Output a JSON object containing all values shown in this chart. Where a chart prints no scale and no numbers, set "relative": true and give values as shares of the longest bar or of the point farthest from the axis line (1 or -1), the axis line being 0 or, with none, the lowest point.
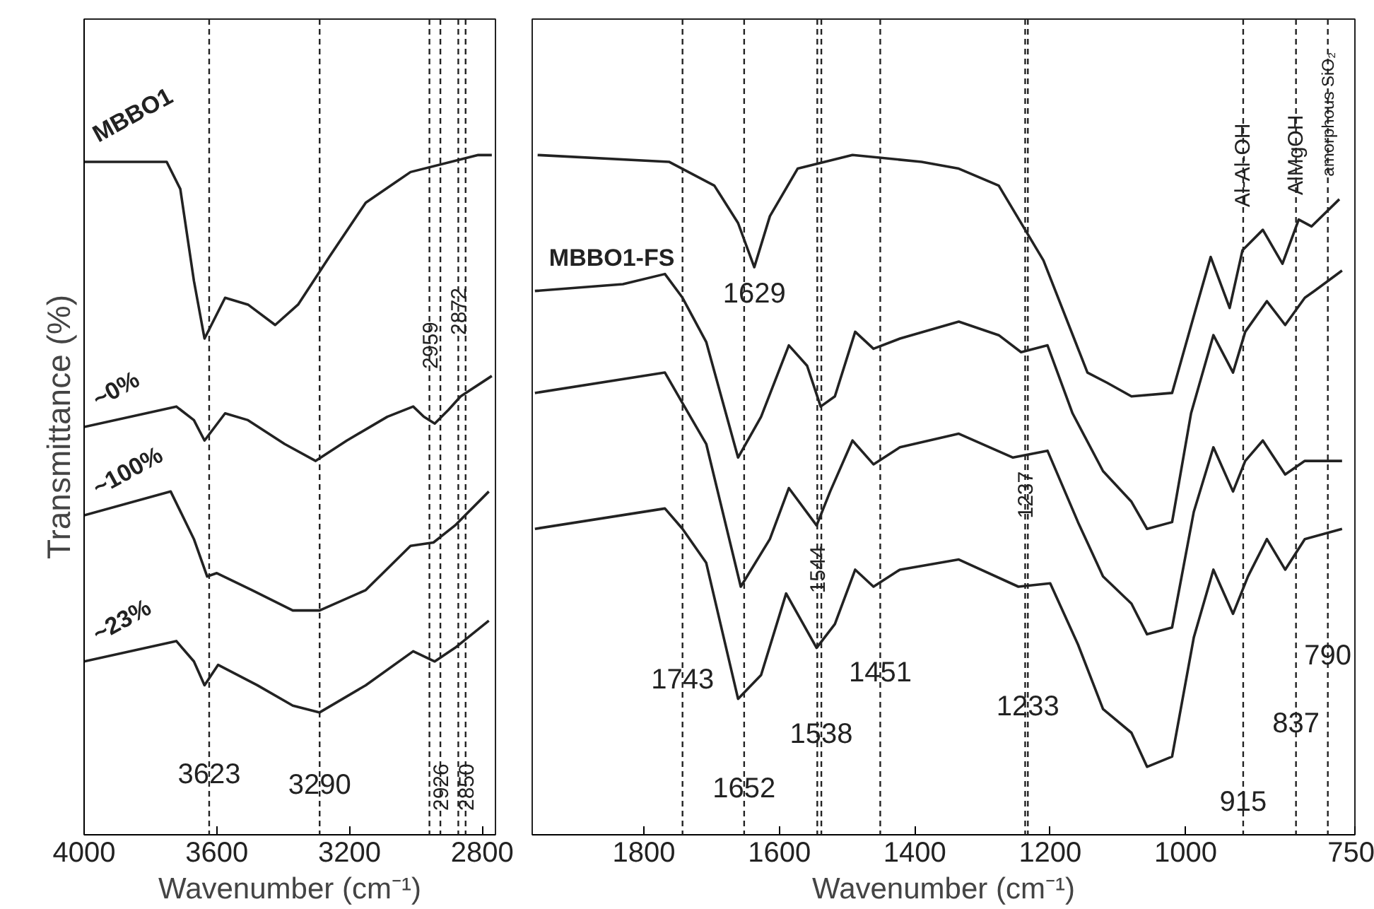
{
  "chart_data": [
    {
      "type": "line",
      "relative": true,
      "ylabel": "Transmittance (%)",
      "xlabel": "Wavenumber (cm⁻¹)",
      "xlim": [
        4000,
        2760
      ],
      "xticks": [
        4000,
        3600,
        3200,
        2800
      ],
      "tick_labels": "x",
      "legend": false,
      "grid": false,
      "marker": "none",
      "line_style": "solid",
      "series": [
        {
          "name": "MBBO1",
          "color": "#222222",
          "x": [
            4000,
            3751,
            3710,
            3669,
            3637,
            3575,
            3506,
            3424,
            3355,
            3261,
            3151,
            3016,
            2812,
            2771
          ],
          "values": [
            0.99,
            0.99,
            0.95,
            0.815,
            0.73,
            0.79,
            0.78,
            0.75,
            0.78,
            0.85,
            0.93,
            0.975,
            1.0,
            1.0
          ]
        },
        {
          "name": "~0%",
          "color": "#222222",
          "x": [
            4000,
            3722,
            3669,
            3637,
            3575,
            3506,
            3396,
            3302,
            3208,
            3086,
            3008,
            2976,
            2943,
            2902,
            2865,
            2771
          ],
          "values": [
            0.6,
            0.63,
            0.61,
            0.58,
            0.62,
            0.61,
            0.575,
            0.55,
            0.58,
            0.615,
            0.63,
            0.615,
            0.605,
            0.625,
            0.645,
            0.675
          ]
        },
        {
          "name": "~100%",
          "color": "#222222",
          "x": [
            4000,
            3739,
            3669,
            3629,
            3600,
            3494,
            3371,
            3290,
            3151,
            3016,
            2947,
            2882,
            2780
          ],
          "values": [
            0.47,
            0.505,
            0.435,
            0.38,
            0.385,
            0.36,
            0.33,
            0.33,
            0.36,
            0.425,
            0.43,
            0.455,
            0.505
          ]
        },
        {
          "name": "~23%",
          "color": "#222222",
          "x": [
            4000,
            3722,
            3669,
            3637,
            3596,
            3478,
            3371,
            3290,
            3151,
            3008,
            2943,
            2882,
            2780
          ],
          "values": [
            0.255,
            0.285,
            0.255,
            0.22,
            0.25,
            0.22,
            0.19,
            0.18,
            0.22,
            0.27,
            0.255,
            0.275,
            0.315
          ]
        }
      ],
      "ref_lines": [
        {
          "axis": "x",
          "value": 3623,
          "color": "#222222",
          "line_style": "dashed"
        },
        {
          "axis": "x",
          "value": 3290,
          "color": "#222222",
          "line_style": "dashed"
        },
        {
          "axis": "x",
          "value": 2959,
          "color": "#222222",
          "line_style": "dashed"
        },
        {
          "axis": "x",
          "value": 2926,
          "color": "#222222",
          "line_style": "dashed"
        },
        {
          "axis": "x",
          "value": 2872,
          "color": "#222222",
          "line_style": "dashed"
        },
        {
          "axis": "x",
          "value": 2850,
          "color": "#222222",
          "line_style": "dashed"
        }
      ],
      "annotations": [
        {
          "text": "3623",
          "x": 3623,
          "y": 0.09
        },
        {
          "text": "3290",
          "x": 3290,
          "y": 0.075
        },
        {
          "text": "2959",
          "x": 2959,
          "y": 0.72
        },
        {
          "text": "2872",
          "x": 2872,
          "y": 0.77
        },
        {
          "text": "2926",
          "x": 2926,
          "y": 0.07
        },
        {
          "text": "2850",
          "x": 2850,
          "y": 0.07
        }
      ]
    },
    {
      "type": "line",
      "relative": true,
      "xlabel": "Wavenumber (cm⁻¹)",
      "xlim": [
        1965,
        750
      ],
      "xticks": [
        1800,
        1600,
        1400,
        1200,
        1000,
        750
      ],
      "tick_labels": "x",
      "legend": false,
      "grid": false,
      "marker": "none",
      "line_style": "solid",
      "series": [
        {
          "color": "#222222",
          "x": [
            1957,
            1763,
            1696,
            1661,
            1637,
            1614,
            1573,
            1492,
            1390,
            1335,
            1276,
            1210,
            1145,
            1116,
            1080,
            1020,
            986,
            963,
            935,
            916,
            886,
            857,
            833,
            814,
            773
          ],
          "values": [
            1.0,
            0.99,
            0.955,
            0.9,
            0.835,
            0.91,
            0.98,
            1.0,
            0.99,
            0.98,
            0.955,
            0.845,
            0.68,
            0.665,
            0.645,
            0.65,
            0.77,
            0.85,
            0.775,
            0.86,
            0.89,
            0.84,
            0.905,
            0.895,
            0.935
          ]
        },
        {
          "name": "MBBO1-FS",
          "color": "#222222",
          "x": [
            1961,
            1831,
            1769,
            1743,
            1708,
            1661,
            1627,
            1586,
            1559,
            1539,
            1518,
            1488,
            1461,
            1422,
            1335,
            1276,
            1243,
            1204,
            1167,
            1122,
            1080,
            1057,
            1020,
            992,
            959,
            930,
            912,
            880,
            853,
            824,
            810,
            769
          ],
          "values": [
            0.8,
            0.81,
            0.825,
            0.79,
            0.725,
            0.555,
            0.615,
            0.72,
            0.69,
            0.63,
            0.645,
            0.74,
            0.715,
            0.73,
            0.755,
            0.735,
            0.71,
            0.72,
            0.62,
            0.535,
            0.49,
            0.45,
            0.46,
            0.62,
            0.735,
            0.68,
            0.74,
            0.785,
            0.75,
            0.79,
            0.8,
            0.83
          ]
        },
        {
          "color": "#222222",
          "x": [
            1961,
            1769,
            1743,
            1708,
            1657,
            1614,
            1586,
            1545,
            1525,
            1492,
            1461,
            1422,
            1335,
            1255,
            1204,
            1159,
            1122,
            1080,
            1057,
            1020,
            988,
            959,
            930,
            912,
            886,
            853,
            824,
            769
          ],
          "values": [
            0.65,
            0.68,
            0.635,
            0.575,
            0.365,
            0.435,
            0.51,
            0.455,
            0.505,
            0.58,
            0.545,
            0.57,
            0.59,
            0.555,
            0.565,
            0.46,
            0.38,
            0.34,
            0.295,
            0.305,
            0.475,
            0.57,
            0.505,
            0.55,
            0.58,
            0.53,
            0.55,
            0.55
          ]
        },
        {
          "color": "#222222",
          "x": [
            1961,
            1769,
            1743,
            1708,
            1661,
            1627,
            1590,
            1545,
            1518,
            1488,
            1461,
            1422,
            1335,
            1247,
            1200,
            1159,
            1122,
            1080,
            1057,
            1020,
            988,
            959,
            930,
            908,
            880,
            853,
            824,
            769
          ],
          "values": [
            0.45,
            0.48,
            0.45,
            0.4,
            0.2,
            0.235,
            0.355,
            0.275,
            0.31,
            0.39,
            0.365,
            0.39,
            0.405,
            0.365,
            0.37,
            0.28,
            0.185,
            0.15,
            0.1,
            0.115,
            0.29,
            0.39,
            0.325,
            0.38,
            0.435,
            0.39,
            0.435,
            0.45
          ]
        }
      ],
      "ref_lines": [
        {
          "axis": "x",
          "value": 1743,
          "color": "#222222",
          "line_style": "dashed"
        },
        {
          "axis": "x",
          "value": 1652,
          "color": "#222222",
          "line_style": "dashed"
        },
        {
          "axis": "x",
          "value": 1544,
          "color": "#222222",
          "line_style": "dashed"
        },
        {
          "axis": "x",
          "value": 1538,
          "color": "#222222",
          "line_style": "dashed"
        },
        {
          "axis": "x",
          "value": 1451,
          "color": "#222222",
          "line_style": "dashed"
        },
        {
          "axis": "x",
          "value": 1237,
          "color": "#222222",
          "line_style": "dashed"
        },
        {
          "axis": "x",
          "value": 1233,
          "color": "#222222",
          "line_style": "dashed"
        },
        {
          "axis": "x",
          "value": 915,
          "color": "#222222",
          "line_style": "dashed"
        },
        {
          "axis": "x",
          "value": 837,
          "color": "#222222",
          "line_style": "dashed"
        },
        {
          "axis": "x",
          "value": 790,
          "color": "#222222",
          "line_style": "dashed"
        }
      ],
      "annotations": [
        {
          "text": "1629",
          "x": 1637,
          "y": 0.835
        },
        {
          "text": "1743",
          "x": 1743,
          "y": 0.23
        },
        {
          "text": "1652",
          "x": 1652,
          "y": 0.07
        },
        {
          "text": "1544",
          "x": 1544,
          "y": 0.39
        },
        {
          "text": "1538",
          "x": 1538,
          "y": 0.15
        },
        {
          "text": "1451",
          "x": 1451,
          "y": 0.24
        },
        {
          "text": "1237",
          "x": 1237,
          "y": 0.5
        },
        {
          "text": "1233",
          "x": 1233,
          "y": 0.19
        },
        {
          "text": "915",
          "x": 915,
          "y": 0.05
        },
        {
          "text": "837",
          "x": 837,
          "y": 0.165
        },
        {
          "text": "790",
          "x": 790,
          "y": 0.265
        },
        {
          "text": "Al-Al-OH",
          "x": 915,
          "y": 0.985
        },
        {
          "text": "AlMgOH",
          "x": 837,
          "y": 1.0
        },
        {
          "text": "amorphous SiO₂",
          "x": 790,
          "y": 1.06
        }
      ]
    }
  ]
}
